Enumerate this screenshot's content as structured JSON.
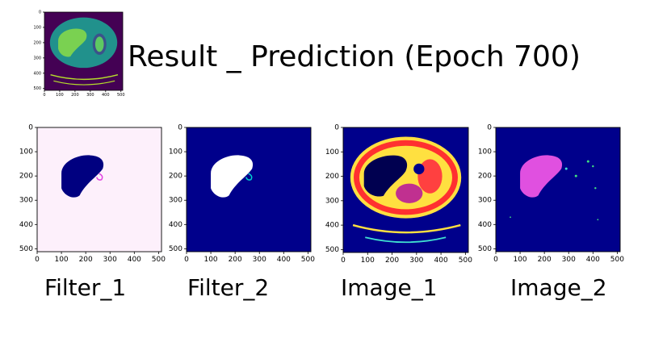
{
  "header": {
    "title": "Result _ Prediction (Epoch 700)"
  },
  "thumbnail": {
    "xticks": [
      0,
      100,
      200,
      300,
      400,
      500
    ],
    "yticks": [
      0,
      100,
      200,
      300,
      400,
      500
    ]
  },
  "panels": [
    {
      "caption": "Filter_1",
      "xticks": [
        0,
        100,
        200,
        300,
        400,
        500
      ],
      "yticks": [
        0,
        100,
        200,
        300,
        400,
        500
      ]
    },
    {
      "caption": "Filter_2",
      "xticks": [
        0,
        100,
        200,
        300,
        400,
        500
      ],
      "yticks": [
        0,
        100,
        200,
        300,
        400,
        500
      ]
    },
    {
      "caption": "Image_1",
      "xticks": [
        0,
        100,
        200,
        300,
        400,
        500
      ],
      "yticks": [
        0,
        100,
        200,
        300,
        400,
        500
      ]
    },
    {
      "caption": "Image_2",
      "xticks": [
        0,
        100,
        200,
        300,
        400,
        500
      ],
      "yticks": [
        0,
        100,
        200,
        300,
        400,
        500
      ]
    }
  ]
}
